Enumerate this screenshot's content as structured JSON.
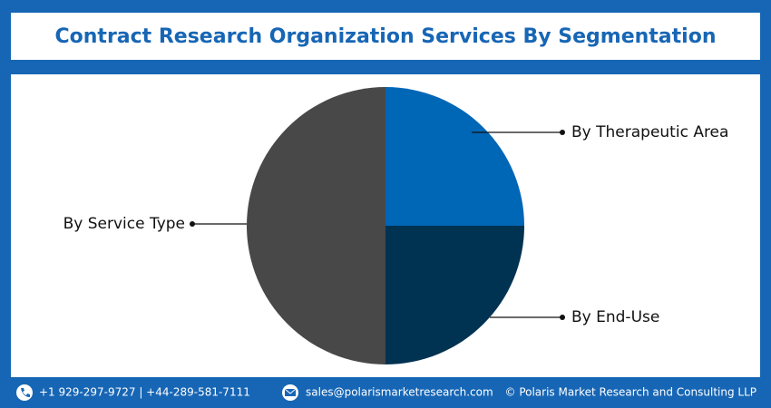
{
  "chart_data": {
    "type": "pie",
    "title": "Contract Research Organization Services By Segmentation",
    "categories": [
      "By Therapeutic Area",
      "By End-Use",
      "By Service Type"
    ],
    "values": [
      25,
      25,
      50
    ],
    "colors": [
      "#0066b6",
      "#003252",
      "#484848"
    ]
  },
  "footer": {
    "phone": "+1 929-297-9727 | +44-289-581-7111",
    "email": "sales@polarismarketresearch.com",
    "copyright": "© Polaris Market Research and Consulting LLP"
  }
}
